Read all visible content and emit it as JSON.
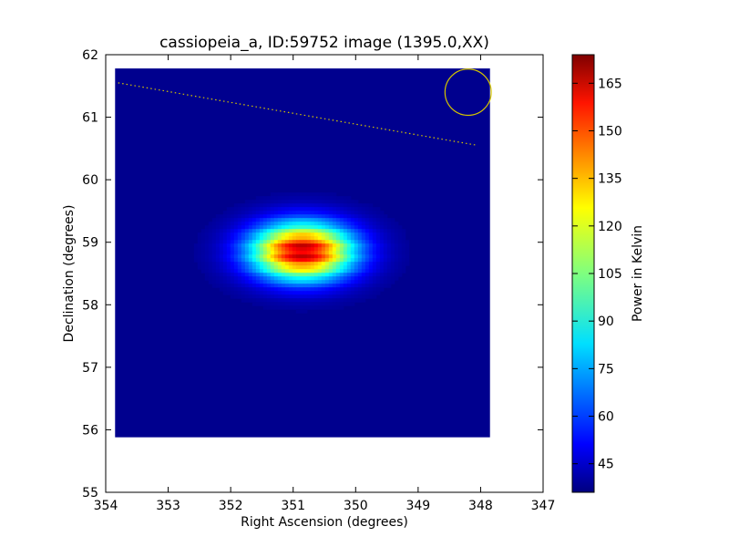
{
  "chart_data": {
    "type": "heatmap",
    "title": "cassiopeia_a, ID:59752 image (1395.0,XX)",
    "xlabel": "Right Ascension (degrees)",
    "ylabel": "Declination (degrees)",
    "xlim": [
      354,
      347
    ],
    "ylim": [
      55,
      62
    ],
    "x_ticks": [
      354,
      353,
      352,
      351,
      350,
      349,
      348,
      347
    ],
    "y_ticks": [
      55,
      56,
      57,
      58,
      59,
      60,
      61,
      62
    ],
    "colorbar": {
      "label": "Power in Kelvin",
      "min": 36,
      "max": 174,
      "ticks": [
        45,
        60,
        75,
        90,
        105,
        120,
        135,
        150,
        165
      ],
      "colormap": "jet"
    },
    "map_extent": {
      "ra": [
        353.85,
        347.85
      ],
      "dec": [
        55.88,
        61.78
      ]
    },
    "background_level": 38,
    "source": {
      "ra": 350.85,
      "dec": 58.85,
      "peak": 172,
      "sigma_ra": 0.58,
      "sigma_dec": 0.32
    },
    "annotations": {
      "dotted_line": {
        "from": [
          353.8,
          61.55
        ],
        "to": [
          348.05,
          60.55
        ],
        "color": "#d4c400"
      },
      "beam_circle": {
        "ra": 348.2,
        "dec": 61.4,
        "radius_ra": 0.37,
        "color": "#d4c400"
      }
    }
  },
  "ticks": {
    "x": [
      "354",
      "353",
      "352",
      "351",
      "350",
      "349",
      "348",
      "347"
    ],
    "y": [
      "55",
      "56",
      "57",
      "58",
      "59",
      "60",
      "61",
      "62"
    ],
    "cb": [
      "45",
      "60",
      "75",
      "90",
      "105",
      "120",
      "135",
      "150",
      "165"
    ]
  },
  "labels": {
    "title": "cassiopeia_a, ID:59752 image (1395.0,XX)",
    "xlabel": "Right Ascension (degrees)",
    "ylabel": "Declination (degrees)",
    "cblabel": "Power in Kelvin"
  }
}
